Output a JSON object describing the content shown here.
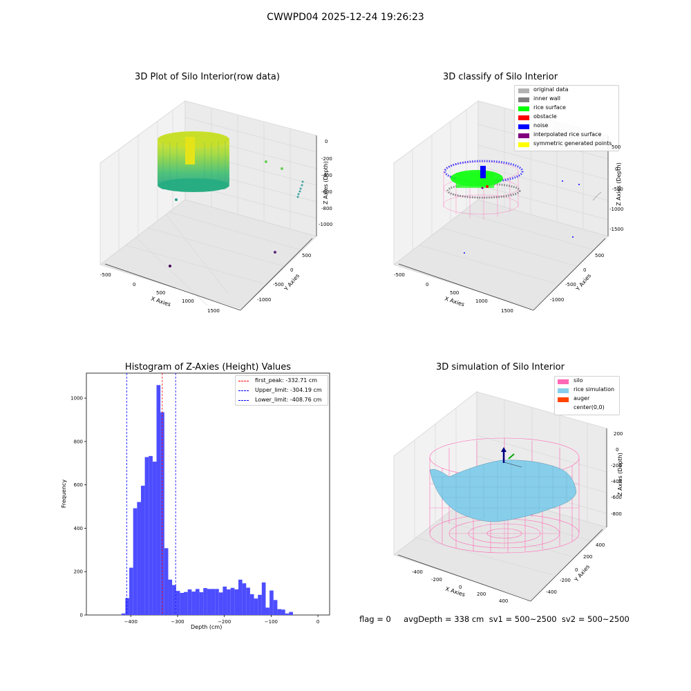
{
  "suptitle": "CWWPD04 2025-12-24 19:26:23",
  "chart_data": [
    {
      "type": "scatter",
      "title": "3D Plot of Silo Interior(row data)",
      "xlabel": "X Axies",
      "ylabel": "Y Axies",
      "zlabel": "Z Axies (Depth)",
      "x_ticks": [
        "-500",
        "0",
        "500",
        "1000",
        "1500"
      ],
      "y_ticks": [
        "500",
        "0",
        "-500",
        "-1000"
      ],
      "z_ticks": [
        "0",
        "-200",
        "-400",
        "-600",
        "-800",
        "-1000"
      ],
      "colormap": "viridis",
      "grid": true
    },
    {
      "type": "scatter",
      "title": "3D classify of Silo Interior",
      "xlabel": "X Axies",
      "ylabel": "Y Axies",
      "zlabel": "Z Axies (Depth)",
      "x_ticks": [
        "-500",
        "0",
        "500",
        "1000",
        "1500"
      ],
      "y_ticks": [
        "500",
        "0",
        "-500",
        "-1000"
      ],
      "z_ticks": [
        "500",
        "0",
        "-500",
        "-1000",
        "-1500"
      ],
      "z_ticks_note": "top tick partially hidden by legend",
      "legend_position": "top-right",
      "legend": [
        {
          "label": "original data",
          "color": "#b3b3b3"
        },
        {
          "label": "inner wall",
          "color": "#808080"
        },
        {
          "label": "rice surface",
          "color": "#00ff00"
        },
        {
          "label": "obstacle",
          "color": "#ff0000"
        },
        {
          "label": "noise",
          "color": "#0000ff"
        },
        {
          "label": "interpolated rice surface",
          "color": "#800080"
        },
        {
          "label": "symmetric generated points",
          "color": "#ffff00"
        }
      ],
      "grid": true
    },
    {
      "type": "bar",
      "title": "Histogram of Z-Axies (Height) Values",
      "xlabel": "Depth (cm)",
      "ylabel": "Frequency",
      "xlim": [
        -495,
        25
      ],
      "ylim": [
        0,
        1115
      ],
      "bin_width": 8.33,
      "bar_color": "#4d4dff",
      "bins": [
        {
          "x0": -420,
          "count": 7
        },
        {
          "x0": -411.67,
          "count": 78
        },
        {
          "x0": -403.33,
          "count": 218
        },
        {
          "x0": -395,
          "count": 492
        },
        {
          "x0": -386.67,
          "count": 521
        },
        {
          "x0": -378.33,
          "count": 596
        },
        {
          "x0": -370,
          "count": 728
        },
        {
          "x0": -361.67,
          "count": 733
        },
        {
          "x0": -353.33,
          "count": 707
        },
        {
          "x0": -345,
          "count": 1060
        },
        {
          "x0": -336.67,
          "count": 935
        },
        {
          "x0": -328.33,
          "count": 308
        },
        {
          "x0": -320,
          "count": 163
        },
        {
          "x0": -311.67,
          "count": 138
        },
        {
          "x0": -303.33,
          "count": 111
        },
        {
          "x0": -295,
          "count": 102
        },
        {
          "x0": -286.67,
          "count": 106
        },
        {
          "x0": -278.33,
          "count": 118
        },
        {
          "x0": -270,
          "count": 108
        },
        {
          "x0": -261.67,
          "count": 120
        },
        {
          "x0": -253.33,
          "count": 105
        },
        {
          "x0": -245,
          "count": 124
        },
        {
          "x0": -236.67,
          "count": 120
        },
        {
          "x0": -228.33,
          "count": 120
        },
        {
          "x0": -220,
          "count": 120
        },
        {
          "x0": -211.67,
          "count": 104
        },
        {
          "x0": -203.33,
          "count": 131
        },
        {
          "x0": -195,
          "count": 118
        },
        {
          "x0": -186.67,
          "count": 125
        },
        {
          "x0": -178.33,
          "count": 118
        },
        {
          "x0": -170,
          "count": 163
        },
        {
          "x0": -161.67,
          "count": 146
        },
        {
          "x0": -153.33,
          "count": 126
        },
        {
          "x0": -145,
          "count": 96
        },
        {
          "x0": -136.67,
          "count": 76
        },
        {
          "x0": -128.33,
          "count": 93
        },
        {
          "x0": -120,
          "count": 150
        },
        {
          "x0": -111.67,
          "count": 34
        },
        {
          "x0": -103.33,
          "count": 113
        },
        {
          "x0": -95,
          "count": 69
        },
        {
          "x0": -86.67,
          "count": 27
        },
        {
          "x0": -78.33,
          "count": 25
        },
        {
          "x0": -70,
          "count": 7
        },
        {
          "x0": -61.67,
          "count": 14
        }
      ],
      "vlines": [
        {
          "label": "first_peak: -332.71 cm",
          "x": -332.71,
          "color": "#ff0000"
        },
        {
          "label": "Upper_limit: -304.19 cm",
          "x": -304.19,
          "color": "#0000ff"
        },
        {
          "label": "Lower_limit: -408.76 cm",
          "x": -408.76,
          "color": "#0000ff"
        }
      ],
      "x_ticks": [
        -400,
        -300,
        -200,
        -100,
        0
      ],
      "x_tick_labels": [
        "−400",
        "−300",
        "−200",
        "−100",
        "0"
      ],
      "y_ticks": [
        0,
        200,
        400,
        600,
        800,
        1000
      ],
      "y_tick_labels": [
        "0",
        "200",
        "400",
        "600",
        "800",
        "1000"
      ],
      "legend_position": "top-right"
    },
    {
      "type": "surface",
      "title": "3D simulation of Silo Interior",
      "xlabel": "X Axies",
      "ylabel": "Y Axies",
      "zlabel": "Z Axies (Depth)",
      "x_ticks": [
        "-400",
        "-200",
        "0",
        "200",
        "400"
      ],
      "y_ticks": [
        "400",
        "200",
        "0",
        "-200",
        "-400"
      ],
      "z_ticks": [
        "200",
        "0",
        "-200",
        "-400",
        "-600",
        "-800"
      ],
      "legend_position": "top-right",
      "legend": [
        {
          "label": "silo",
          "color": "#ff69b4"
        },
        {
          "label": "rice simulation",
          "color": "#87ceeb"
        },
        {
          "label": "auger",
          "color": "#ff4500"
        },
        {
          "label": "center(0,0)",
          "color": ""
        }
      ],
      "grid": true
    }
  ],
  "status_line": "flag = 0     avgDepth = 338 cm  sv1 = 500~2500  sv2 = 500~2500"
}
